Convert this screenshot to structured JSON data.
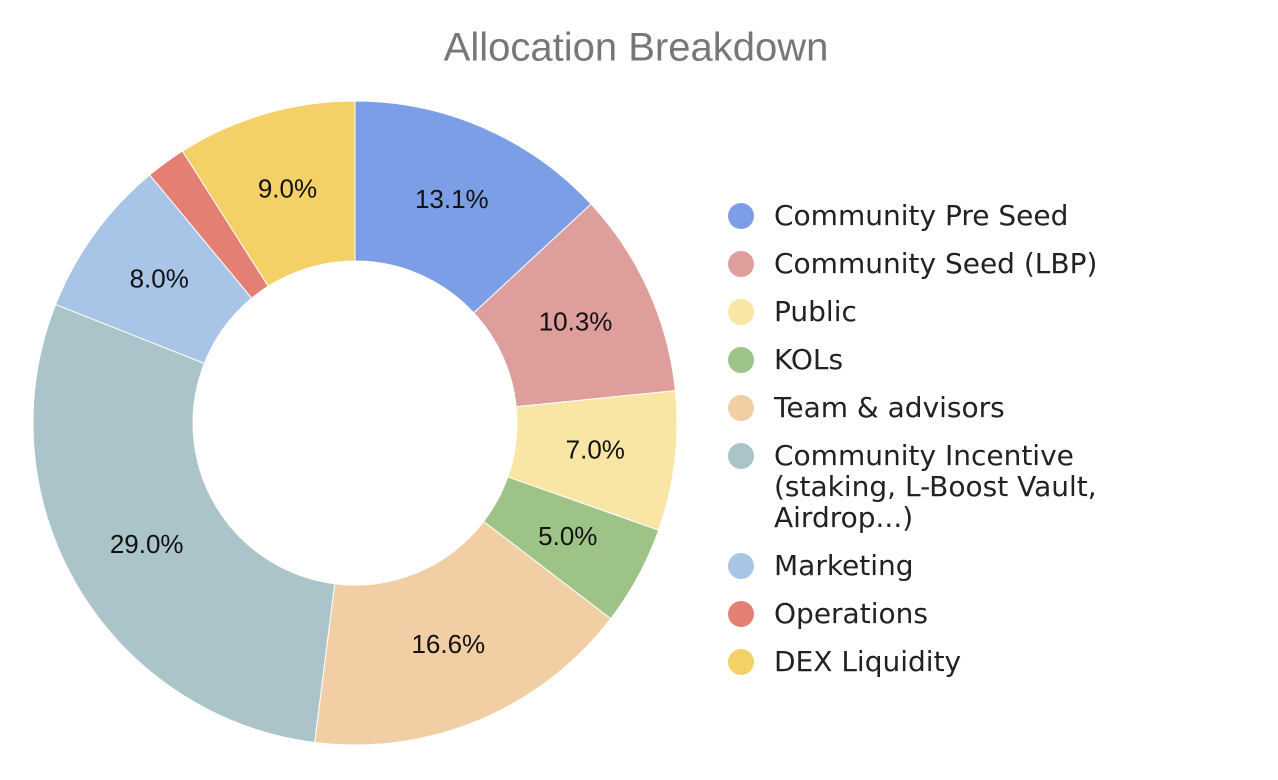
{
  "chart_data": {
    "type": "donut",
    "title": "Allocation Breakdown",
    "categories": [
      "Community Pre Seed",
      "Community Seed (LBP)",
      "Public",
      "KOLs",
      "Team & advisors",
      "Community Incentive (staking, L-Boost Vault, Airdrop...)",
      "Marketing",
      "Operations",
      "DEX Liquidity"
    ],
    "values": [
      13.1,
      10.3,
      7.0,
      5.0,
      16.6,
      29.0,
      8.0,
      2.0,
      9.0
    ],
    "value_labels": [
      "13.1%",
      "10.3%",
      "7.0%",
      "5.0%",
      "16.6%",
      "29.0%",
      "8.0%",
      null,
      "9.0%"
    ],
    "colors": [
      "#7b9ee6",
      "#de9e9c",
      "#fae6a4",
      "#9dc486",
      "#f2cea4",
      "#abc4c9",
      "#a8c4e6",
      "#e37f73",
      "#f3d166"
    ],
    "legend": "right"
  }
}
